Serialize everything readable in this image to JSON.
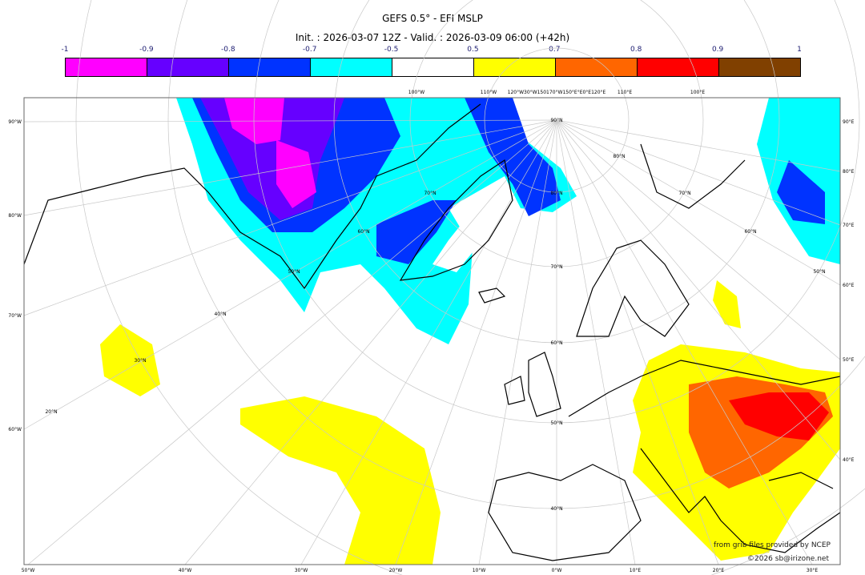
{
  "header": {
    "title": "GEFS 0.5° - EFI MSLP",
    "subtitle": "Init. : 2026-03-07 12Z - Valid. : 2026-03-09 06:00 (+42h)"
  },
  "colorbar": {
    "ticks": [
      "-1",
      "-0.9",
      "-0.8",
      "-0.7",
      "-0.5",
      "0.5",
      "0.7",
      "0.8",
      "0.9",
      "1"
    ],
    "colors": [
      "#ff00ff",
      "#6600ff",
      "#0033ff",
      "#00ffff",
      "#ffffff",
      "#ffff00",
      "#ff6600",
      "#ff0000",
      "#804000"
    ]
  },
  "map": {
    "bottom_labels": [
      "50°W",
      "40°W",
      "30°W",
      "20°W",
      "10°W",
      "0°W",
      "10°E",
      "20°E",
      "30°E"
    ],
    "left_labels": [
      "90°W",
      "80°W",
      "70°W",
      "60°W"
    ],
    "right_labels": [
      "90°E",
      "80°E",
      "70°E",
      "60°E",
      "50°E",
      "40°E"
    ],
    "top_labels": [
      "100°W",
      "110°W",
      "120°W30°W150170°W150°E°E0°E120°E",
      "110°E",
      "100°E"
    ],
    "lat_labels": [
      "90°N",
      "80°N",
      "70°N",
      "80°N",
      "70°N",
      "60°N",
      "60°N",
      "50°N",
      "70°N",
      "50°N",
      "40°N",
      "60°N",
      "30°N",
      "50°N",
      "20°N",
      "40°N"
    ],
    "credit_line1": "from grib files provided by NCEP",
    "credit_line2": "©2026 sb@irizone.net"
  }
}
